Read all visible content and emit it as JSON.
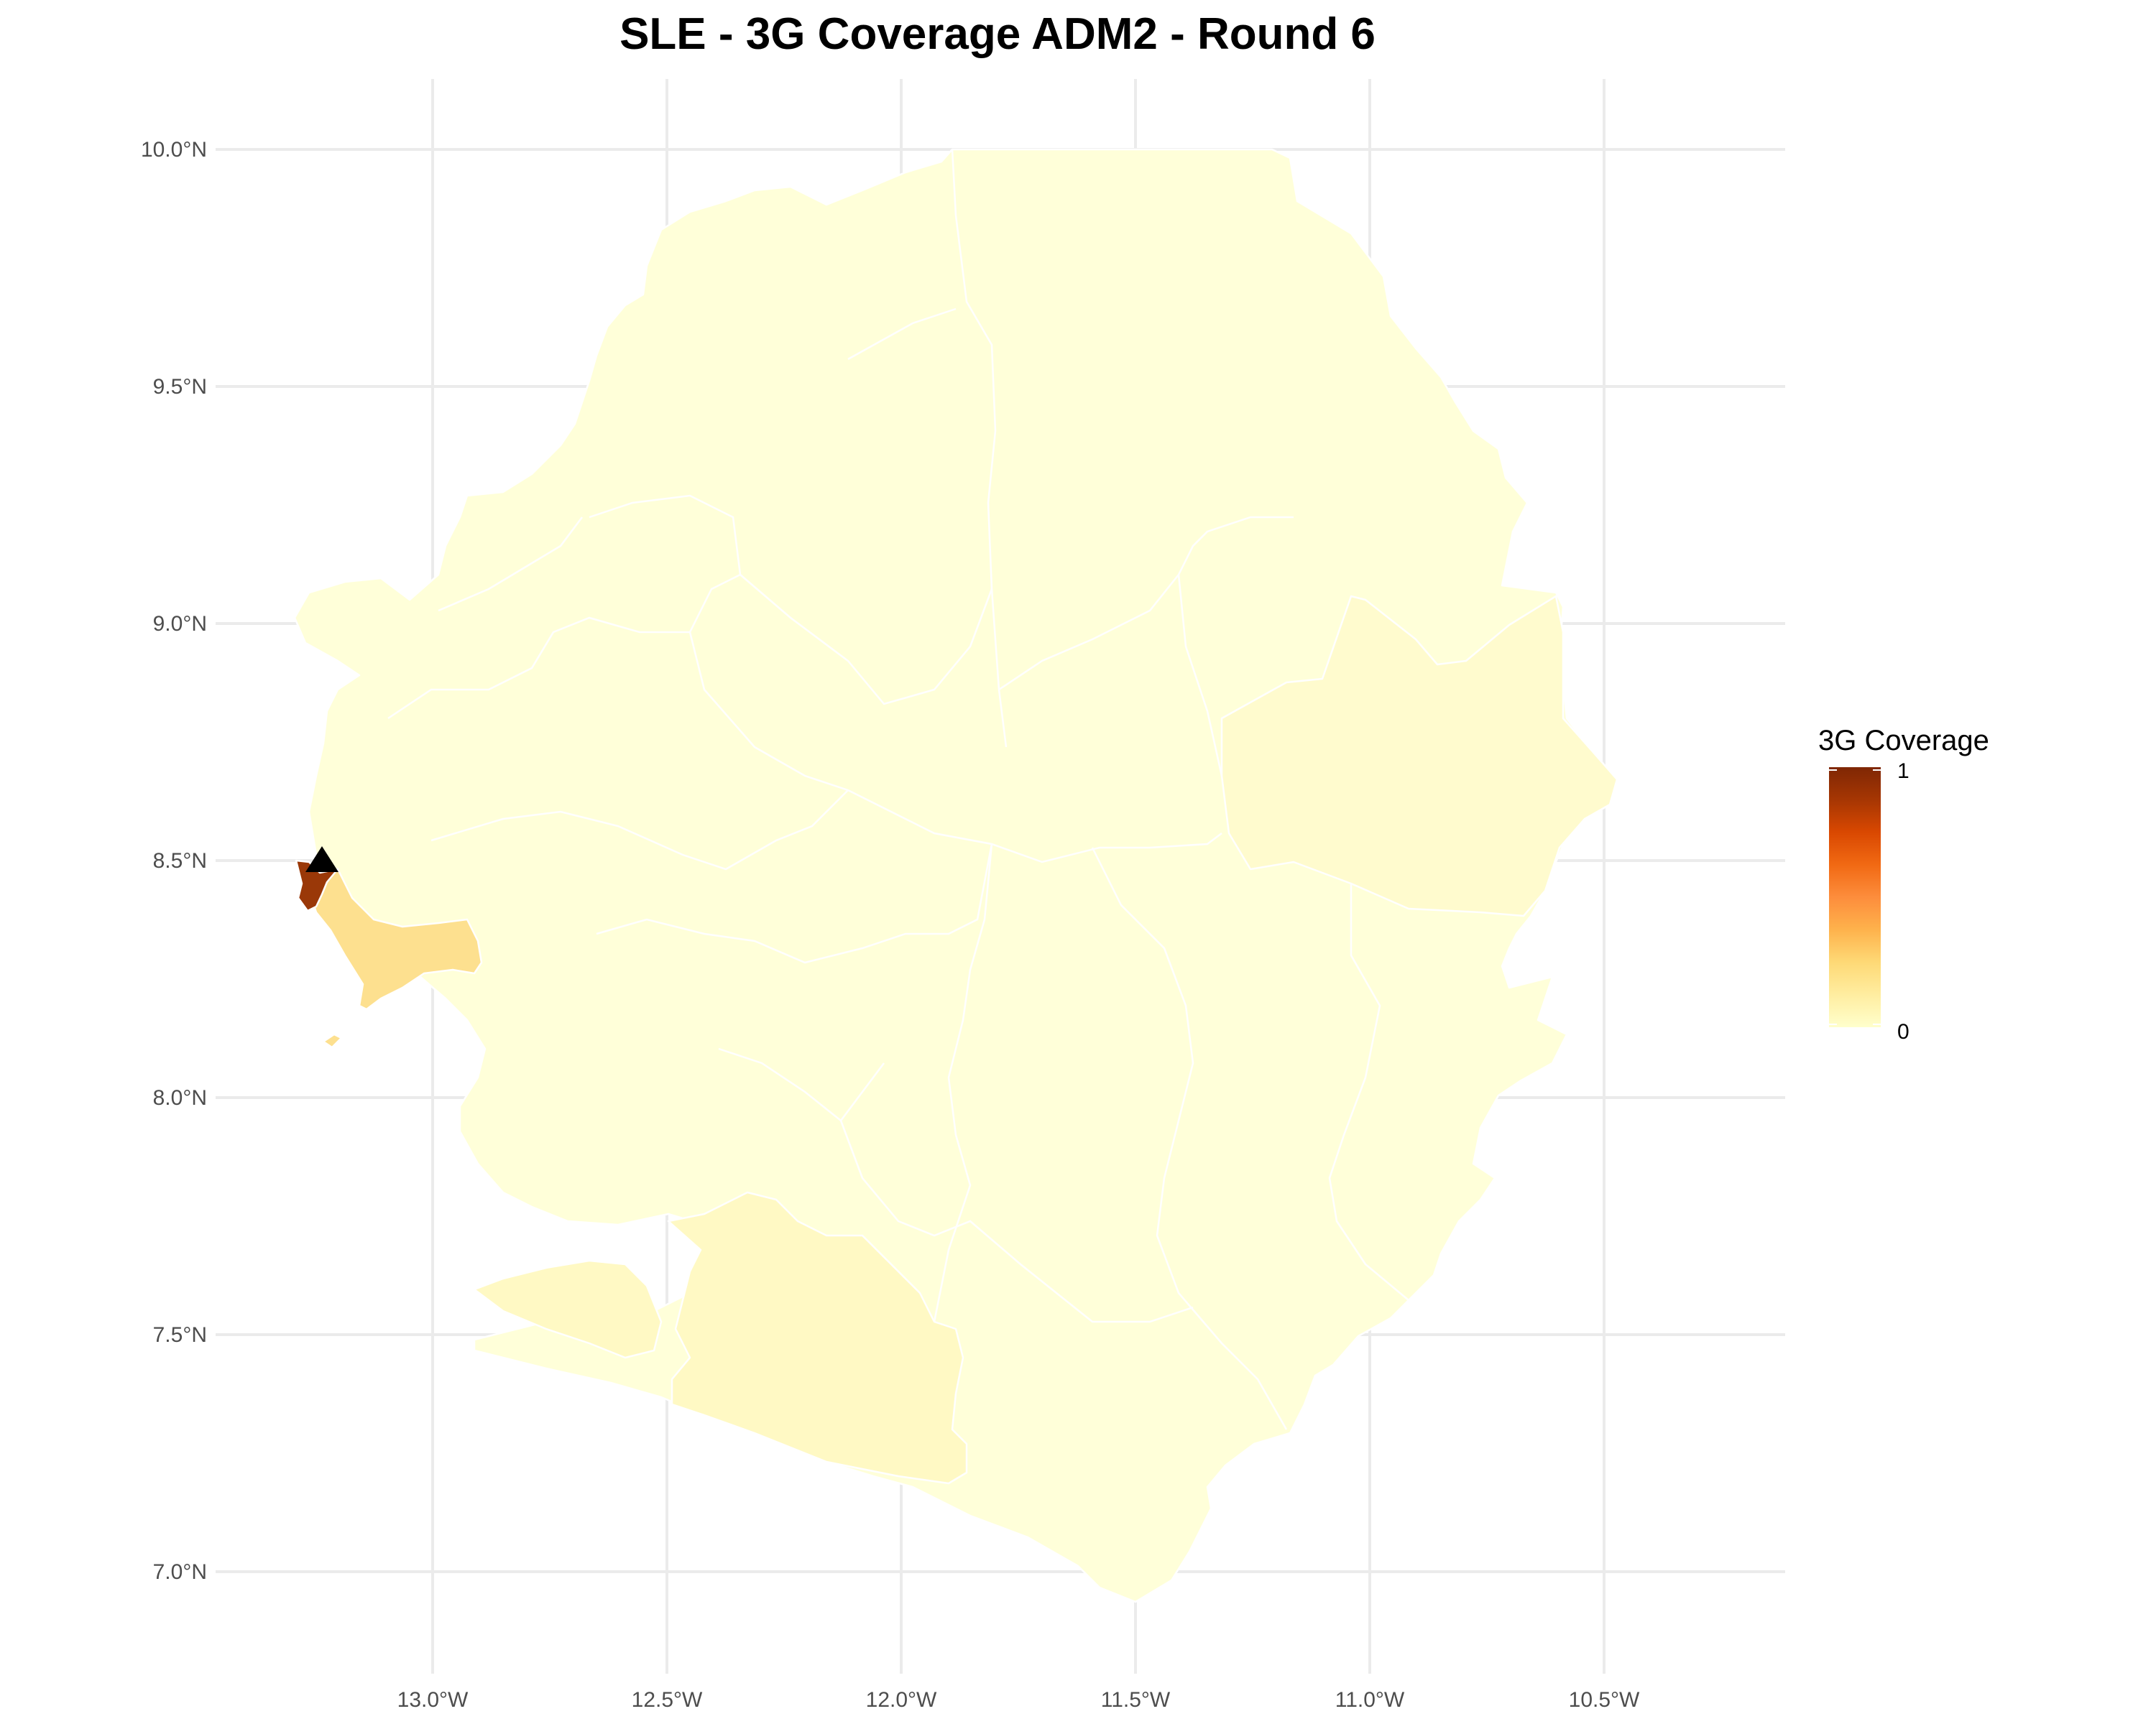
{
  "title": "SLE - 3G Coverage ADM2 - Round 6",
  "axes": {
    "x_ticks": [
      "13.0°W",
      "12.5°W",
      "12.0°W",
      "11.5°W",
      "11.0°W",
      "10.5°W"
    ],
    "y_ticks": [
      "10.0°N",
      "9.5°N",
      "9.0°N",
      "8.5°N",
      "8.0°N",
      "7.5°N",
      "7.0°N"
    ]
  },
  "legend": {
    "title": "3G Coverage",
    "max_label": "1",
    "min_label": "0",
    "placement": "right",
    "colors": [
      "#ffffcc",
      "#ffeda0",
      "#fed976",
      "#feb24c",
      "#fd8d3c",
      "#f16913",
      "#d94801",
      "#a63603",
      "#7f2704"
    ]
  },
  "map_style": {
    "base_fill": "#ffffd9",
    "border_color": "#ffffff",
    "grid": true
  },
  "regions": [
    {
      "id": "western-urban",
      "coverage": 0.95,
      "color": "#9a3808"
    },
    {
      "id": "western-rural",
      "coverage": 0.25,
      "color": "#fde08f"
    },
    {
      "id": "bonthe",
      "coverage": 0.06,
      "color": "#fff9c4"
    },
    {
      "id": "kailahun",
      "coverage": 0.02,
      "color": "#fffbce"
    },
    {
      "id": "other-districts",
      "coverage": 0.0,
      "color": "#ffffd9"
    }
  ],
  "marker": {
    "symbol": "triangle",
    "color": "#000000",
    "lon": -13.24,
    "lat": 8.48
  }
}
